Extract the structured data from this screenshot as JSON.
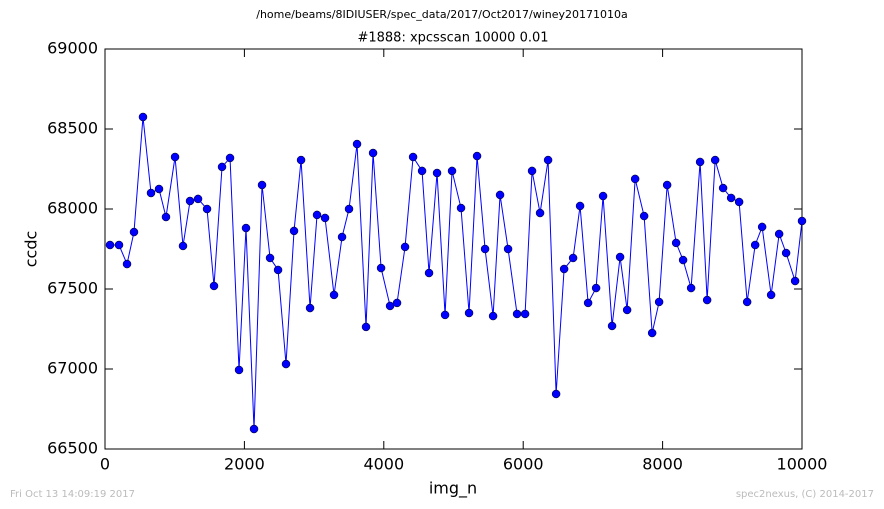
{
  "chart_data": {
    "type": "line",
    "suptitle": "/home/beams/8IDIUSER/spec_data/2017/Oct2017/winey20171010a",
    "title": "#1888: xpcsscan 10000 0.01",
    "xlabel": "img_n",
    "ylabel": "ccdc",
    "footer_left": "Fri Oct 13 14:09:19 2017",
    "footer_right": "spec2nexus, (C) 2014-2017",
    "xlim": [
      0,
      10000
    ],
    "xticks": [
      0,
      2000,
      4000,
      6000,
      8000,
      10000
    ],
    "ylim": [
      66500,
      69000
    ],
    "yticks": [
      66500,
      67000,
      67500,
      68000,
      68500,
      69000
    ],
    "grid": false,
    "x": [
      72,
      201,
      316,
      416,
      545,
      660,
      775,
      875,
      1005,
      1119,
      1220,
      1335,
      1464,
      1564,
      1679,
      1794,
      1923,
      2023,
      2138,
      2253,
      2368,
      2483,
      2597,
      2712,
      2813,
      2942,
      3042,
      3157,
      3286,
      3401,
      3501,
      3616,
      3745,
      3846,
      3961,
      4090,
      4190,
      4305,
      4420,
      4549,
      4649,
      4764,
      4879,
      4979,
      5108,
      5223,
      5338,
      5453,
      5568,
      5668,
      5783,
      5912,
      6027,
      6127,
      6242,
      6357,
      6472,
      6587,
      6716,
      6816,
      6931,
      7046,
      7146,
      7275,
      7390,
      7491,
      7606,
      7735,
      7850,
      7950,
      8065,
      8194,
      8294,
      8409,
      8538,
      8639,
      8754,
      8868,
      8983,
      9098,
      9213,
      9328,
      9428,
      9557,
      9672,
      9772,
      9901,
      10000
    ],
    "series": [
      {
        "name": "ccdc",
        "color": "#0000ff",
        "values": [
          67775,
          67775,
          67656,
          67856,
          68575,
          68100,
          68125,
          67950,
          68325,
          67769,
          68050,
          68063,
          68000,
          67519,
          68263,
          68319,
          66994,
          67881,
          66625,
          68150,
          67694,
          67619,
          67031,
          67863,
          68306,
          67381,
          67963,
          67944,
          67463,
          67825,
          68000,
          68406,
          67263,
          68350,
          67631,
          67394,
          67413,
          67763,
          68325,
          68238,
          67600,
          68225,
          67338,
          68238,
          68006,
          67350,
          68331,
          67750,
          67331,
          68088,
          67750,
          67344,
          67344,
          68238,
          67975,
          68306,
          66844,
          67625,
          67694,
          68019,
          67413,
          67506,
          68081,
          67269,
          67700,
          67369,
          68188,
          67956,
          67225,
          67419,
          68150,
          67788,
          67681,
          67506,
          68294,
          67431,
          68306,
          68131,
          68069,
          68044,
          67419,
          67775,
          67888,
          67463,
          67844,
          67725,
          67550,
          67925
        ]
      }
    ]
  }
}
